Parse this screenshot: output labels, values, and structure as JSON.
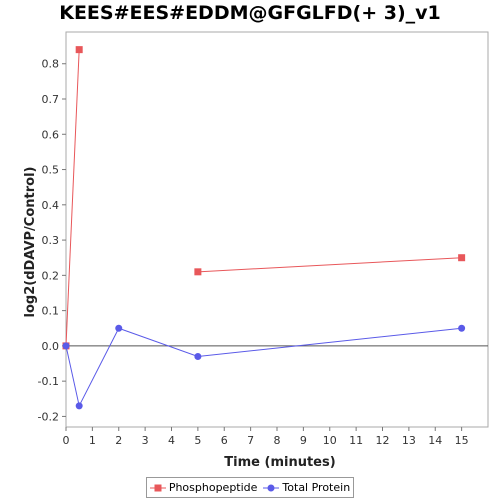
{
  "chart_data": {
    "type": "line",
    "title": "KEES#EES#EDDM@GFGLFD(+ 3)_v1",
    "xlabel": "Time (minutes)",
    "ylabel": "log2(dDAVP/Control)",
    "xlim": [
      0,
      16
    ],
    "ylim": [
      -0.23,
      0.89
    ],
    "xticks": [
      0,
      1,
      2,
      3,
      4,
      5,
      6,
      7,
      8,
      9,
      10,
      11,
      12,
      13,
      14,
      15
    ],
    "yticks": [
      -0.2,
      -0.1,
      0.0,
      0.1,
      0.2,
      0.3,
      0.4,
      0.5,
      0.6,
      0.7,
      0.8
    ],
    "ytick_labels": [
      "-0.2",
      "-0.1",
      "0.0",
      "0.1",
      "0.2",
      "0.3",
      "0.4",
      "0.5",
      "0.6",
      "0.7",
      "0.8"
    ],
    "legend_position": "bottom",
    "grid": false,
    "zero_line": true,
    "series": [
      {
        "name": "Phosphopeptide",
        "color": "#e8575a",
        "marker": "square",
        "segments": [
          [
            [
              0,
              0.0
            ],
            [
              0.5,
              0.84
            ]
          ],
          [
            [
              5,
              0.21
            ],
            [
              15,
              0.25
            ]
          ]
        ]
      },
      {
        "name": "Total Protein",
        "color": "#5a5ae8",
        "marker": "circle",
        "segments": [
          [
            [
              0,
              0.0
            ],
            [
              0.5,
              -0.17
            ],
            [
              2,
              0.05
            ],
            [
              5,
              -0.03
            ],
            [
              15,
              0.05
            ]
          ]
        ]
      }
    ]
  }
}
